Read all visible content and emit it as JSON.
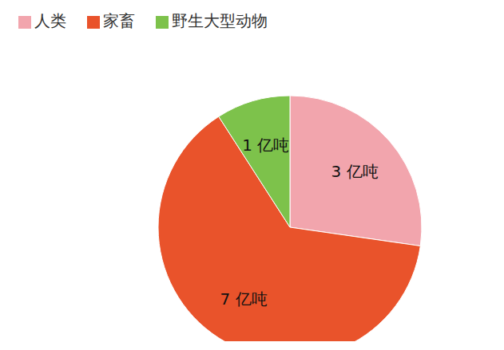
{
  "chart_data": {
    "type": "pie",
    "categories": [
      "人类",
      "家畜",
      "野生大型动物"
    ],
    "values": [
      3,
      7,
      1
    ],
    "value_labels": [
      "3 亿吨",
      "7 亿吨",
      "1 亿吨"
    ],
    "colors": [
      "#f2a5ad",
      "#e9532b",
      "#7dc24b"
    ],
    "legend": "top",
    "data_labels": true
  }
}
